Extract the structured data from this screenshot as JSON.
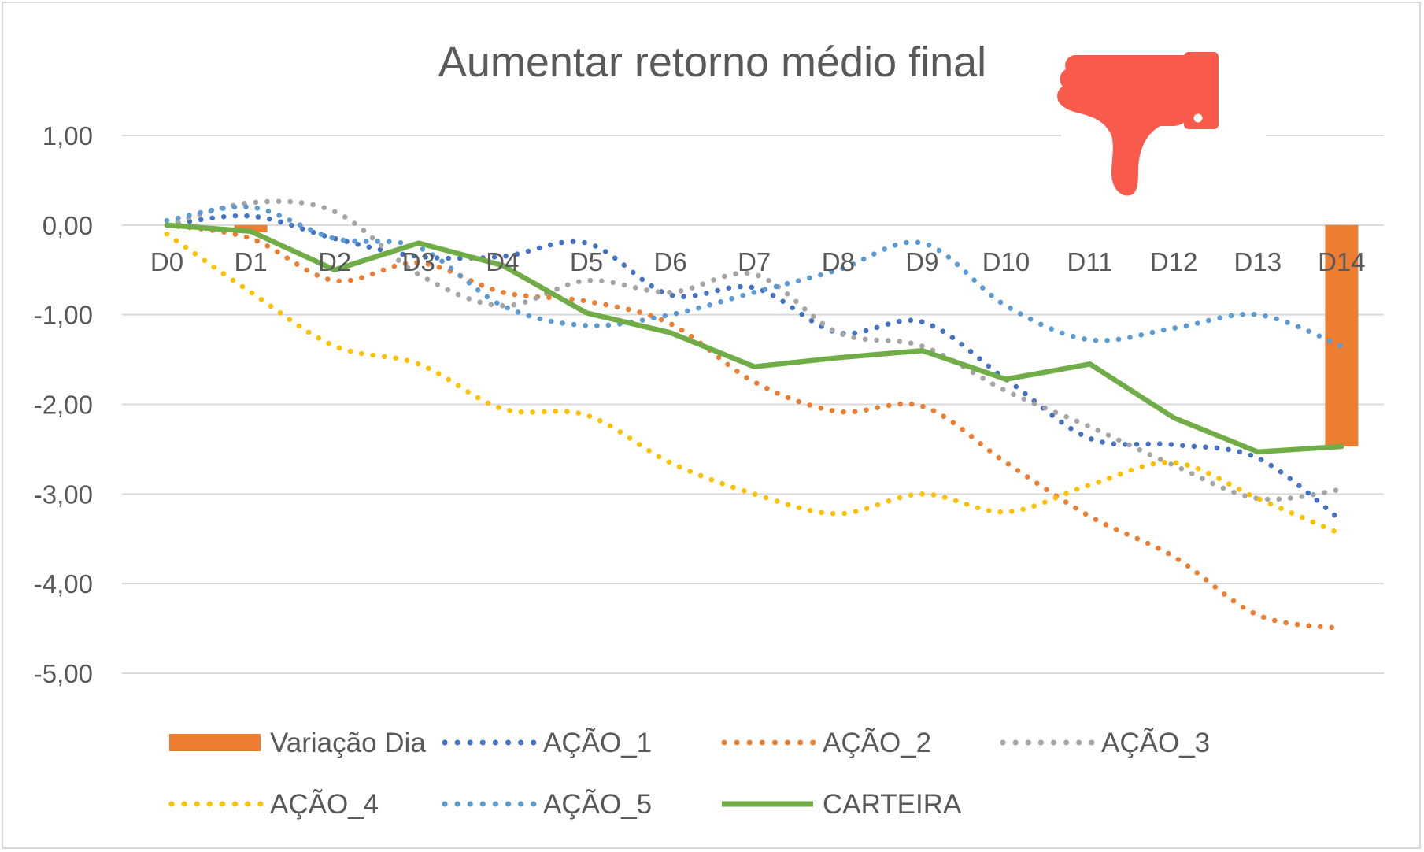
{
  "chart_data": {
    "type": "line",
    "title": "Aumentar retorno médio final",
    "xlabel": "",
    "ylabel": "",
    "categories": [
      "D0",
      "D1",
      "D2",
      "D3",
      "D4",
      "D5",
      "D6",
      "D7",
      "D8",
      "D9",
      "D10",
      "D11",
      "D12",
      "D13",
      "D14"
    ],
    "ylim": [
      -5,
      1
    ],
    "yticks": [
      1,
      0,
      -1,
      -2,
      -3,
      -4,
      -5
    ],
    "ytick_labels": [
      "1,00",
      "0,00",
      "-1,00",
      "-2,00",
      "-3,00",
      "-4,00",
      "-5,00"
    ],
    "grid": true,
    "legend_position": "bottom",
    "series": [
      {
        "name": "Variação Dia",
        "kind": "bar",
        "color": "#ED7D31",
        "values": [
          null,
          -0.08,
          null,
          null,
          null,
          null,
          null,
          null,
          null,
          null,
          null,
          null,
          null,
          null,
          -2.47
        ]
      },
      {
        "name": "AÇÃO_1",
        "kind": "dotted",
        "color": "#4472C4",
        "values": [
          0.0,
          0.1,
          -0.15,
          -0.35,
          -0.35,
          -0.2,
          -0.78,
          -0.7,
          -1.2,
          -1.08,
          -1.72,
          -2.38,
          -2.45,
          -2.6,
          -3.3
        ]
      },
      {
        "name": "AÇÃO_2",
        "kind": "dotted",
        "color": "#ED7D31",
        "values": [
          0.0,
          -0.15,
          -0.62,
          -0.42,
          -0.75,
          -0.85,
          -1.1,
          -1.75,
          -2.08,
          -2.02,
          -2.65,
          -3.25,
          -3.7,
          -4.35,
          -4.5
        ]
      },
      {
        "name": "AÇÃO_3",
        "kind": "dotted",
        "color": "#A5A5A5",
        "values": [
          0.0,
          0.25,
          0.15,
          -0.55,
          -0.9,
          -0.62,
          -0.75,
          -0.55,
          -1.2,
          -1.35,
          -1.85,
          -2.25,
          -2.68,
          -3.05,
          -2.95
        ]
      },
      {
        "name": "AÇÃO_4",
        "kind": "dotted",
        "color": "#FFC000",
        "values": [
          -0.1,
          -0.75,
          -1.35,
          -1.55,
          -2.05,
          -2.12,
          -2.65,
          -3.0,
          -3.22,
          -3.0,
          -3.2,
          -2.9,
          -2.65,
          -3.05,
          -3.45
        ]
      },
      {
        "name": "AÇÃO_5",
        "kind": "dotted",
        "color": "#5B9BD5",
        "values": [
          0.05,
          0.2,
          -0.15,
          -0.25,
          -0.9,
          -1.12,
          -1.0,
          -0.75,
          -0.5,
          -0.2,
          -0.9,
          -1.28,
          -1.15,
          -1.0,
          -1.35
        ]
      },
      {
        "name": "CARTEIRA",
        "kind": "solid",
        "color": "#70AD47",
        "values": [
          0.0,
          -0.07,
          -0.5,
          -0.2,
          -0.45,
          -0.98,
          -1.2,
          -1.58,
          -1.48,
          -1.4,
          -1.72,
          -1.55,
          -2.15,
          -2.53,
          -2.47
        ]
      }
    ]
  },
  "icon": {
    "name": "thumbs-down-icon",
    "color": "#F85A4B"
  }
}
